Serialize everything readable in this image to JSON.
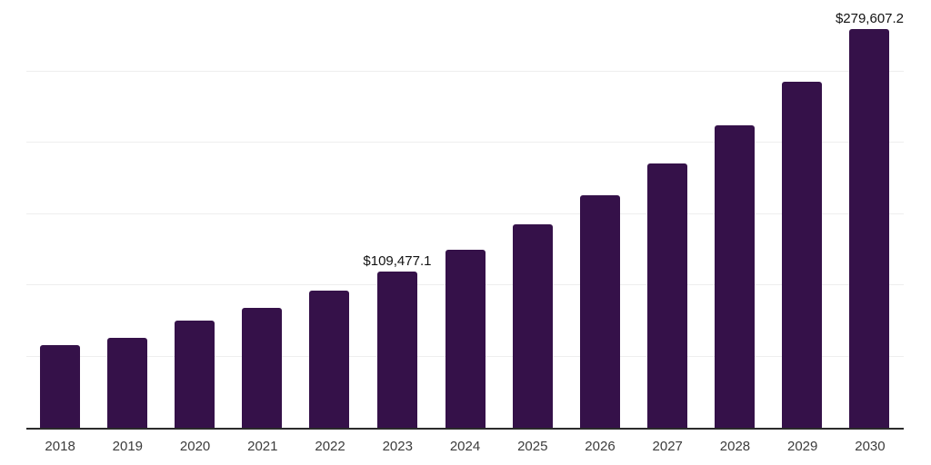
{
  "chart_style": {
    "background_color": "#ffffff",
    "bar_color": "#351149",
    "axis_line_color": "#2b2b2b",
    "gridline_color": "#eeeeee",
    "tick_label_color": "#3c3c3c",
    "data_label_color": "#111111"
  },
  "chart_data": {
    "type": "bar",
    "title": "",
    "xlabel": "",
    "ylabel": "",
    "categories": [
      "2018",
      "2019",
      "2020",
      "2021",
      "2022",
      "2023",
      "2024",
      "2025",
      "2026",
      "2027",
      "2028",
      "2029",
      "2030"
    ],
    "values": [
      57900,
      63000,
      75100,
      84100,
      96200,
      109477.1,
      124700,
      142700,
      162800,
      185600,
      212200,
      242700,
      279607.2
    ],
    "data_labels": {
      "2023": "$109,477.1",
      "2030": "$279,607.2"
    },
    "ylim": [
      0,
      300000
    ],
    "gridlines": {
      "orientation": "horizontal",
      "interval": 50000,
      "count": 6
    },
    "legend": "none",
    "y_axis_labels_visible": false
  }
}
